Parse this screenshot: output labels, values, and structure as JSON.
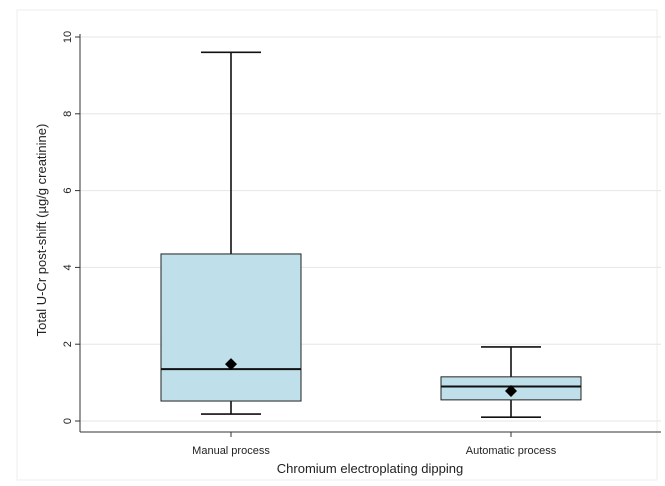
{
  "chart_data": {
    "type": "boxplot",
    "title": "",
    "xlabel": "Chromium electroplating dipping",
    "ylabel": "Total U-Cr post-shift (µg/g creatinine)",
    "ylim": [
      0,
      10
    ],
    "yticks": [
      0,
      2,
      4,
      6,
      8,
      10
    ],
    "grid": true,
    "categories": [
      "Manual process",
      "Automatic process"
    ],
    "boxes": [
      {
        "category": "Manual process",
        "min": 0.18,
        "q1": 0.52,
        "median": 1.35,
        "q3": 4.35,
        "max": 9.6,
        "mean": 1.48
      },
      {
        "category": "Automatic process",
        "min": 0.1,
        "q1": 0.55,
        "median": 0.9,
        "q3": 1.15,
        "max": 1.93,
        "mean": 0.78
      }
    ],
    "box_fill": "#bfe0ea",
    "gridline_color": "#e6e6e6"
  }
}
